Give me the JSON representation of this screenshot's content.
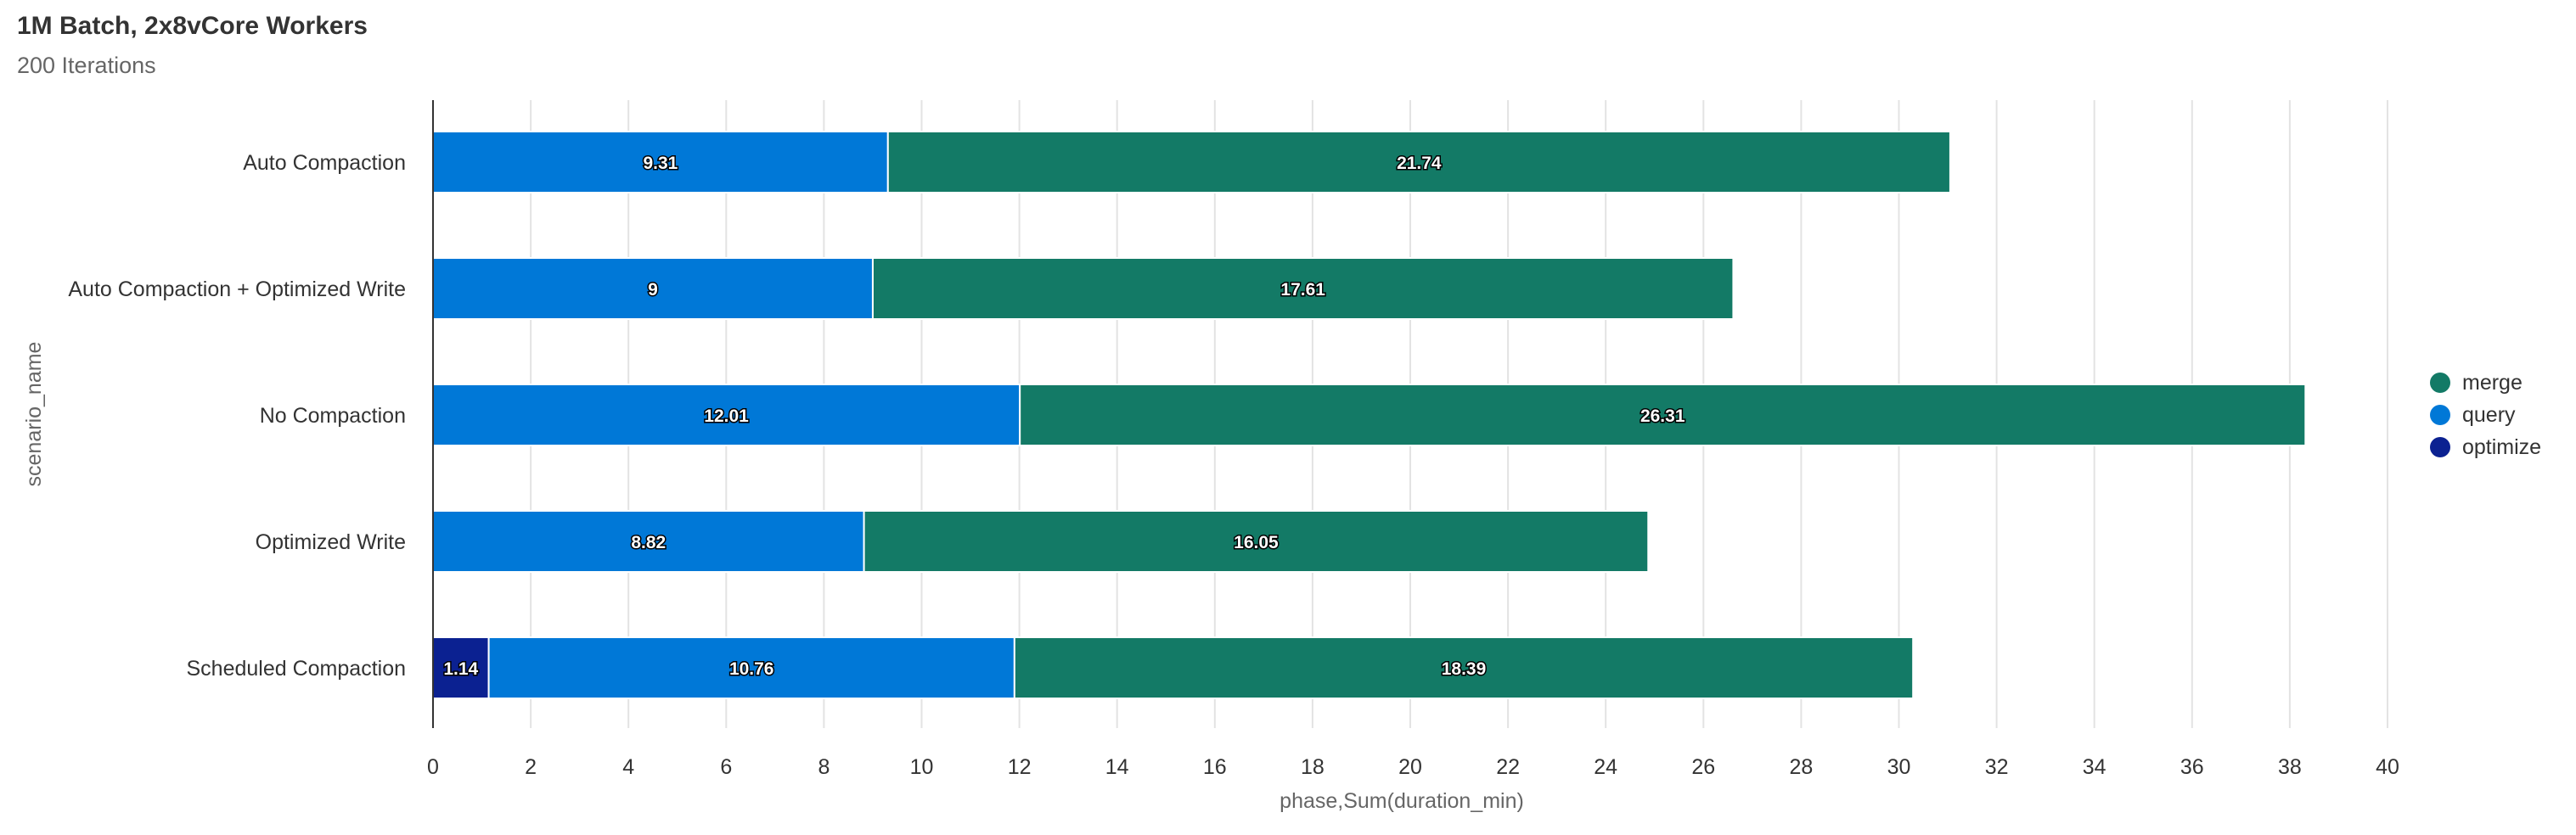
{
  "header": {
    "title": "1M Batch, 2x8vCore Workers",
    "subtitle": "200 Iterations"
  },
  "chart_data": {
    "type": "bar",
    "orientation": "horizontal",
    "stacked": true,
    "title": "1M Batch, 2x8vCore Workers",
    "subtitle": "200 Iterations",
    "xlabel": "phase,Sum(duration_min)",
    "ylabel": "scenario_name",
    "xlim": [
      0,
      40
    ],
    "xticks": [
      0,
      2,
      4,
      6,
      8,
      10,
      12,
      14,
      16,
      18,
      20,
      22,
      24,
      26,
      28,
      30,
      32,
      34,
      36,
      38,
      40
    ],
    "grid": "vertical",
    "legend_position": "right",
    "categories": [
      "Auto Compaction",
      "Auto Compaction + Optimized Write",
      "No Compaction",
      "Optimized Write",
      "Scheduled Compaction"
    ],
    "stack_order": [
      "optimize",
      "query",
      "merge"
    ],
    "series": [
      {
        "name": "merge",
        "color": "#137a66",
        "values": [
          21.74,
          17.61,
          26.31,
          16.05,
          18.39
        ]
      },
      {
        "name": "query",
        "color": "#0078d7",
        "values": [
          9.31,
          9,
          12.01,
          8.82,
          10.76
        ]
      },
      {
        "name": "optimize",
        "color": "#0b2191",
        "values": [
          null,
          null,
          null,
          null,
          1.14
        ]
      }
    ]
  }
}
